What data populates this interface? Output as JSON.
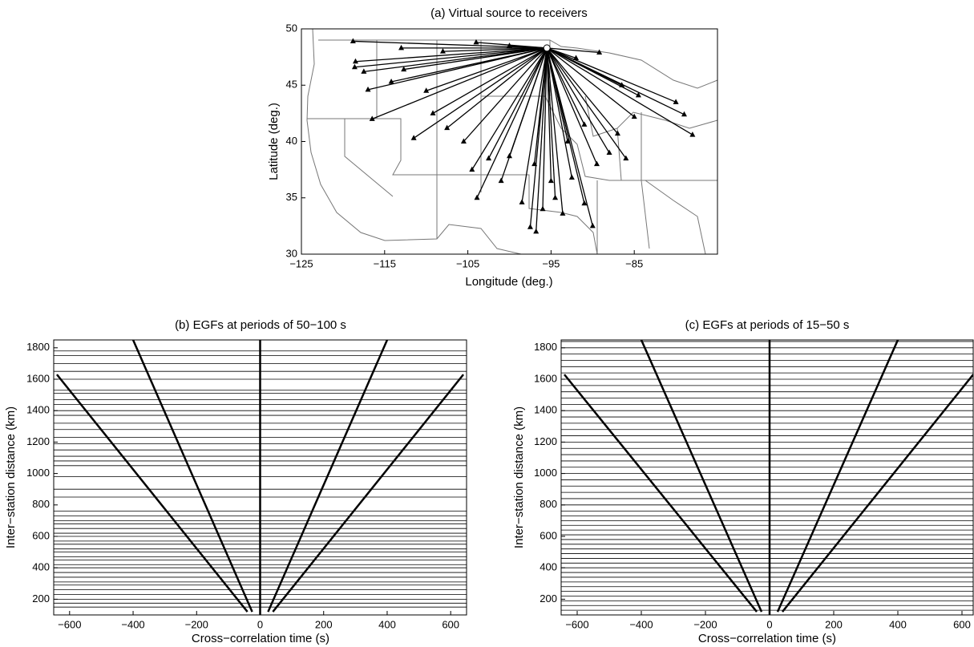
{
  "chart_data": [
    {
      "type": "scatter",
      "title": "(a) Virtual source to receivers",
      "xlabel": "Longitude (deg.)",
      "ylabel": "Latitude (deg.)",
      "xlim": [
        -125,
        -75
      ],
      "ylim": [
        30,
        50
      ],
      "xticks": [
        {
          "value": -125,
          "label": "−125"
        },
        {
          "value": -115,
          "label": "−115"
        },
        {
          "value": -105,
          "label": "−105"
        },
        {
          "value": -95,
          "label": "−95"
        },
        {
          "value": -85,
          "label": "−85"
        }
      ],
      "yticks": [
        30,
        35,
        40,
        45,
        50
      ],
      "source": {
        "x": -95.5,
        "y": 48.3
      },
      "color": "#000000",
      "x": [
        -118.8,
        -118.5,
        -118.6,
        -117.5,
        -117,
        -116.5,
        -114.2,
        -112.7,
        -111.5,
        -110,
        -109.2,
        -107.5,
        -105.5,
        -104.5,
        -103.9,
        -102.5,
        -101,
        -100,
        -98.5,
        -97.5,
        -96.8,
        -96,
        -95,
        -94.5,
        -93.6,
        -92.5,
        -91,
        -90,
        -89.5,
        -88,
        -87,
        -86,
        -85,
        -84.5,
        -86.5,
        -80,
        -79,
        -78,
        -89.2,
        -92,
        -100,
        -104,
        -108,
        -113,
        -97,
        -93,
        -91
      ],
      "y": [
        48.9,
        47.1,
        46.6,
        46.2,
        44.6,
        42,
        45.3,
        46.4,
        40.3,
        44.5,
        42.5,
        41.2,
        40,
        37.5,
        35,
        38.5,
        36.5,
        38.7,
        34.6,
        32.4,
        32,
        34,
        36.5,
        35,
        33.6,
        36.8,
        34.5,
        32.5,
        38,
        39,
        40.7,
        38.5,
        42.2,
        44.1,
        45,
        43.5,
        42.4,
        40.6,
        47.9,
        47.4,
        48.5,
        48.8,
        48,
        48.3,
        38,
        40,
        41.5
      ]
    },
    {
      "type": "line",
      "title": "(b) EGFs at periods of 50−100 s",
      "xlabel": "Cross−correlation time (s)",
      "ylabel": "Inter−station distance (km)",
      "xlim": [
        -650,
        650
      ],
      "ylim": [
        100,
        1850
      ],
      "xticks": [
        {
          "value": -600,
          "label": "−600"
        },
        {
          "value": -400,
          "label": "−400"
        },
        {
          "value": -200,
          "label": "−200"
        },
        0,
        200,
        400,
        600
      ],
      "yticks": [
        200,
        400,
        600,
        800,
        1000,
        1200,
        1400,
        1600,
        1800
      ],
      "traces": [
        150,
        175,
        200,
        230,
        260,
        290,
        310,
        340,
        370,
        400,
        420,
        450,
        470,
        500,
        520,
        550,
        570,
        600,
        620,
        650,
        680,
        700,
        730,
        760,
        850,
        900,
        980,
        1050,
        1080,
        1110,
        1150,
        1190,
        1230,
        1280,
        1320,
        1370,
        1400,
        1440,
        1470,
        1510,
        1530,
        1600,
        1650,
        1700,
        1750,
        1780
      ],
      "series": [
        {
          "color": "#000000",
          "x": [
            -640,
            -40
          ],
          "y": [
            1630,
            120
          ]
        },
        {
          "color": "#000000",
          "x": [
            -400,
            -25
          ],
          "y": [
            1850,
            120
          ]
        },
        {
          "color": "#000000",
          "x": [
            0,
            0
          ],
          "y": [
            1850,
            100
          ]
        },
        {
          "color": "#000000",
          "x": [
            25,
            400
          ],
          "y": [
            120,
            1850
          ]
        },
        {
          "color": "#000000",
          "x": [
            40,
            640
          ],
          "y": [
            120,
            1630
          ]
        }
      ]
    },
    {
      "type": "line",
      "title": "(c) EGFs at periods of 15−50 s",
      "xlabel": "Cross−correlation time (s)",
      "ylabel": "Inter−station distance (km)",
      "xlim": [
        -650,
        635
      ],
      "ylim": [
        100,
        1850
      ],
      "xticks": [
        {
          "value": -600,
          "label": "−600"
        },
        {
          "value": -400,
          "label": "−400"
        },
        {
          "value": -200,
          "label": "−200"
        },
        0,
        200,
        400,
        600
      ],
      "yticks": [
        200,
        400,
        600,
        800,
        1000,
        1200,
        1400,
        1600,
        1800
      ],
      "traces": [
        130,
        160,
        190,
        220,
        250,
        280,
        310,
        340,
        370,
        400,
        430,
        460,
        490,
        520,
        550,
        580,
        610,
        640,
        670,
        700,
        730,
        760,
        800,
        840,
        880,
        920,
        960,
        1000,
        1040,
        1080,
        1120,
        1160,
        1200,
        1240,
        1280,
        1320,
        1360,
        1400,
        1440,
        1480,
        1520,
        1560,
        1600,
        1640,
        1680,
        1720,
        1760,
        1800,
        1840
      ],
      "series": [
        {
          "color": "#000000",
          "x": [
            -640,
            -40
          ],
          "y": [
            1630,
            120
          ]
        },
        {
          "color": "#000000",
          "x": [
            -400,
            -25
          ],
          "y": [
            1850,
            120
          ]
        },
        {
          "color": "#000000",
          "x": [
            0,
            0
          ],
          "y": [
            1850,
            100
          ]
        },
        {
          "color": "#000000",
          "x": [
            25,
            400
          ],
          "y": [
            120,
            1850
          ]
        },
        {
          "color": "#000000",
          "x": [
            40,
            635
          ],
          "y": [
            120,
            1630
          ]
        }
      ]
    }
  ]
}
